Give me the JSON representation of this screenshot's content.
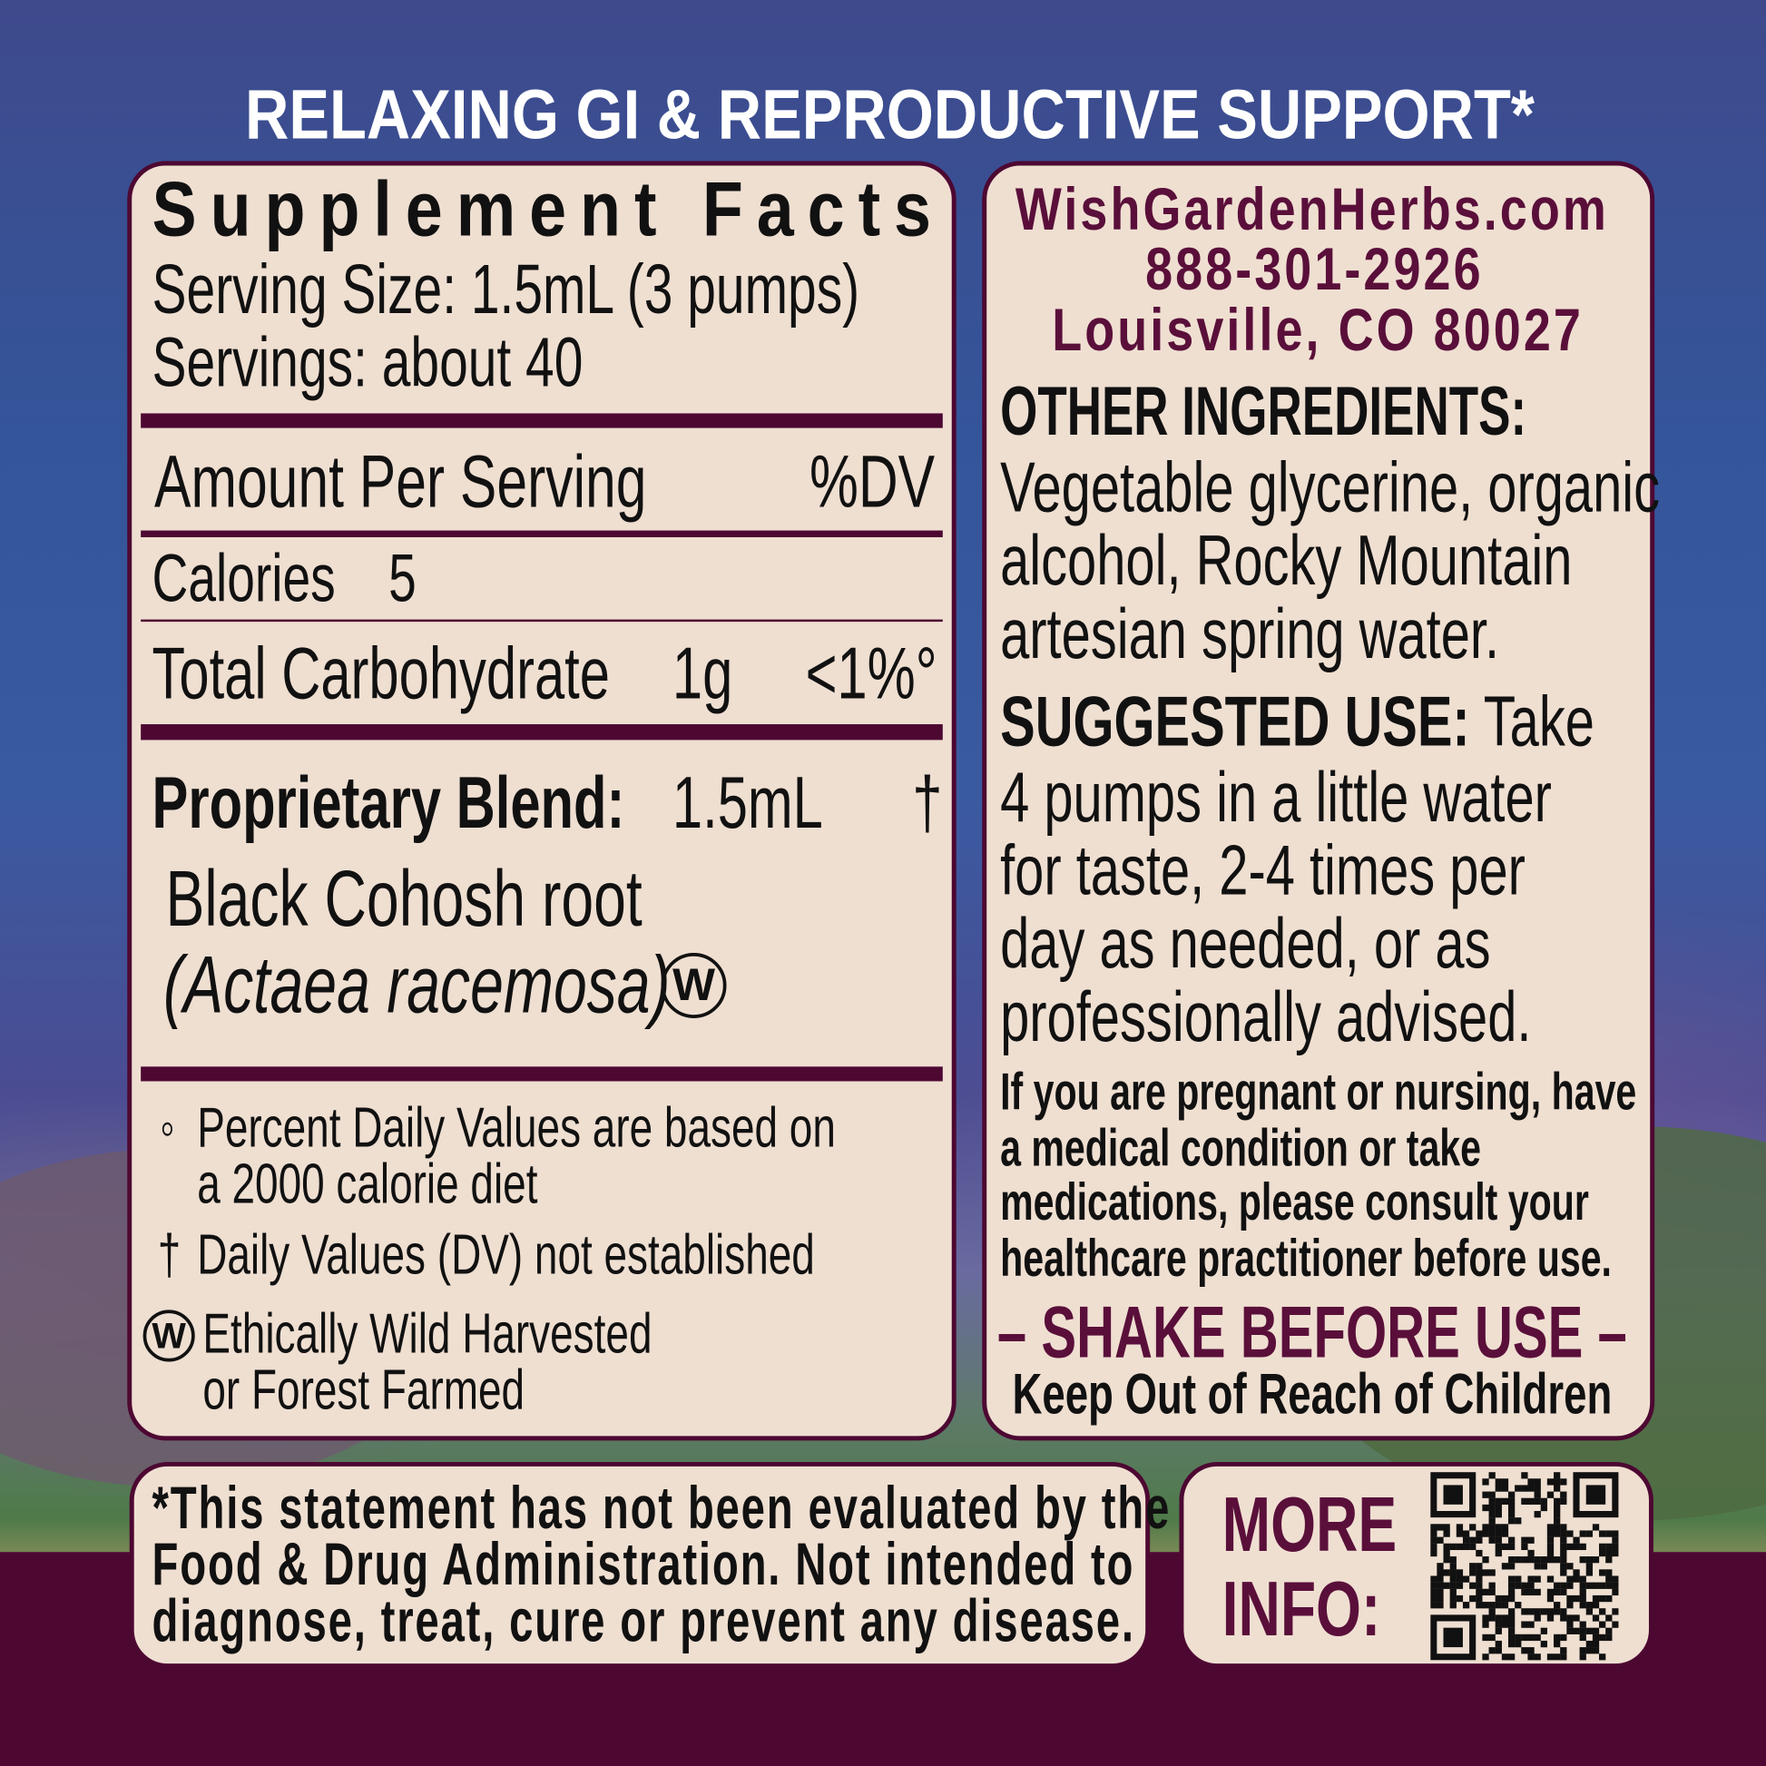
{
  "headline": "RELAXING GI & REPRODUCTIVE SUPPORT*",
  "supplement_facts": {
    "title": "Supplement Facts",
    "serving_size": "Serving Size: 1.5mL (3 pumps)",
    "servings": "Servings: about 40",
    "amount_header": "Amount Per Serving",
    "dv_header": "%DV",
    "rows": [
      {
        "name": "Calories",
        "amount": "5",
        "dv": ""
      },
      {
        "name": "Total Carbohydrate",
        "amount": "1g",
        "dv": "<1%°"
      }
    ],
    "blend": {
      "name": "Proprietary Blend:",
      "amount": "1.5mL",
      "dv": "†"
    },
    "ingredient": {
      "common_name": "Black Cohosh root",
      "latin_name": "(Actaea racemosa)",
      "mark": "W"
    },
    "footnotes": {
      "dv_symbol": "◦",
      "dv_line1": "Percent Daily Values are based on",
      "dv_line2": "a 2000 calorie diet",
      "dagger_symbol": "†",
      "dagger_text": "Daily Values (DV) not established",
      "wild_mark": "W",
      "wild_line1": "Ethically Wild Harvested",
      "wild_line2": "or Forest Farmed"
    }
  },
  "contact": {
    "website": "WishGardenHerbs.com",
    "phone": "888-301-2926",
    "address": "Louisville, CO 80027"
  },
  "other_ingredients": {
    "heading": "OTHER INGREDIENTS:",
    "lines": [
      "Vegetable glycerine, organic",
      "alcohol, Rocky Mountain",
      "artesian spring water."
    ]
  },
  "suggested_use": {
    "heading": "SUGGESTED USE:",
    "first_line_rest": " Take",
    "lines": [
      "4 pumps in a little water",
      "for taste, 2-4 times per",
      "day as needed, or as",
      "professionally advised."
    ]
  },
  "warning": {
    "lines": [
      "If you are pregnant or nursing, have",
      "a medical condition or take",
      "medications, please consult your",
      "healthcare practitioner before use."
    ]
  },
  "shake": "– SHAKE BEFORE USE –",
  "keep_out": "Keep Out of Reach of Children",
  "disclaimer": {
    "lines": [
      "*This statement has not been evaluated by the",
      "Food & Drug Administration. Not intended to",
      "diagnose, treat, cure or prevent any disease."
    ]
  },
  "more_info": {
    "line1": "MORE",
    "line2": "INFO:",
    "icon": "qr-code-icon"
  },
  "colors": {
    "maroon": "#4d0832",
    "panel": "#efdfd1",
    "accent_text": "#5a0f3a",
    "headline": "#ffffff"
  }
}
